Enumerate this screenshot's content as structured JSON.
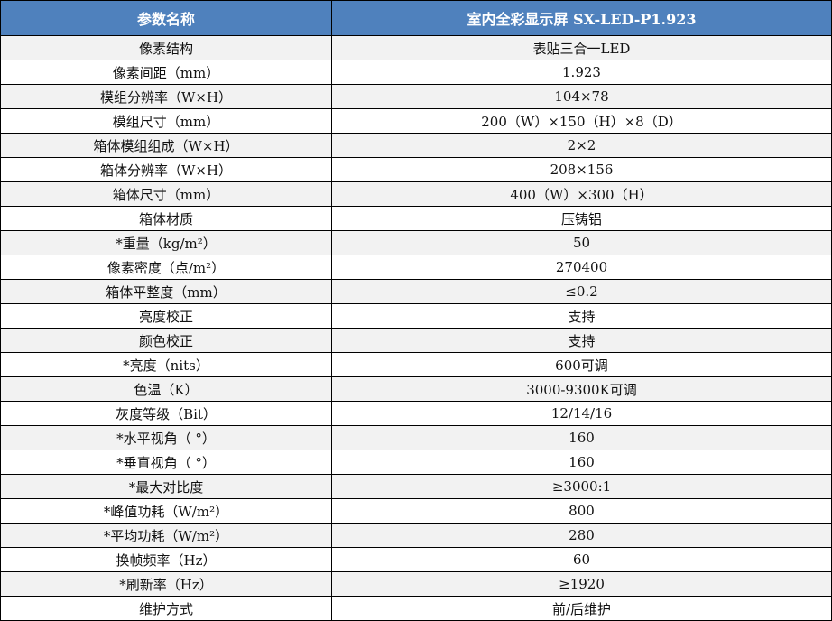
{
  "colors": {
    "header_bg": "#4f81bd",
    "header_text": "#ffffff",
    "row_alt": "#f2f2f2",
    "row": "#ffffff"
  },
  "table": {
    "headers": [
      "参数名称",
      "室内全彩显示屏 SX-LED-P1.923"
    ],
    "rows": [
      [
        "像素结构",
        "表贴三合一LED"
      ],
      [
        "像素间距（mm）",
        "1.923"
      ],
      [
        "模组分辨率（W×H）",
        "104×78"
      ],
      [
        "模组尺寸（mm）",
        "200（W）×150（H）×8（D）"
      ],
      [
        "箱体模组组成（W×H）",
        "2×2"
      ],
      [
        "箱体分辨率（W×H）",
        "208×156"
      ],
      [
        "箱体尺寸（mm）",
        "400（W）×300（H）"
      ],
      [
        "箱体材质",
        "压铸铝"
      ],
      [
        "*重量（kg/m²）",
        "50"
      ],
      [
        "像素密度（点/m²）",
        "270400"
      ],
      [
        "箱体平整度（mm）",
        "≤0.2"
      ],
      [
        "亮度校正",
        "支持"
      ],
      [
        "颜色校正",
        "支持"
      ],
      [
        "*亮度（nits）",
        "600可调"
      ],
      [
        "色温（K）",
        "3000-9300K可调"
      ],
      [
        "灰度等级（Bit）",
        "12/14/16"
      ],
      [
        "*水平视角（ °）",
        "160"
      ],
      [
        "*垂直视角（ °）",
        "160"
      ],
      [
        "*最大对比度",
        "≥3000:1"
      ],
      [
        "*峰值功耗（W/m²）",
        "800"
      ],
      [
        "*平均功耗（W/m²）",
        "280"
      ],
      [
        "换帧频率（Hz）",
        "60"
      ],
      [
        "*刷新率（Hz）",
        "≥1920"
      ],
      [
        "维护方式",
        "前/后维护"
      ]
    ]
  }
}
